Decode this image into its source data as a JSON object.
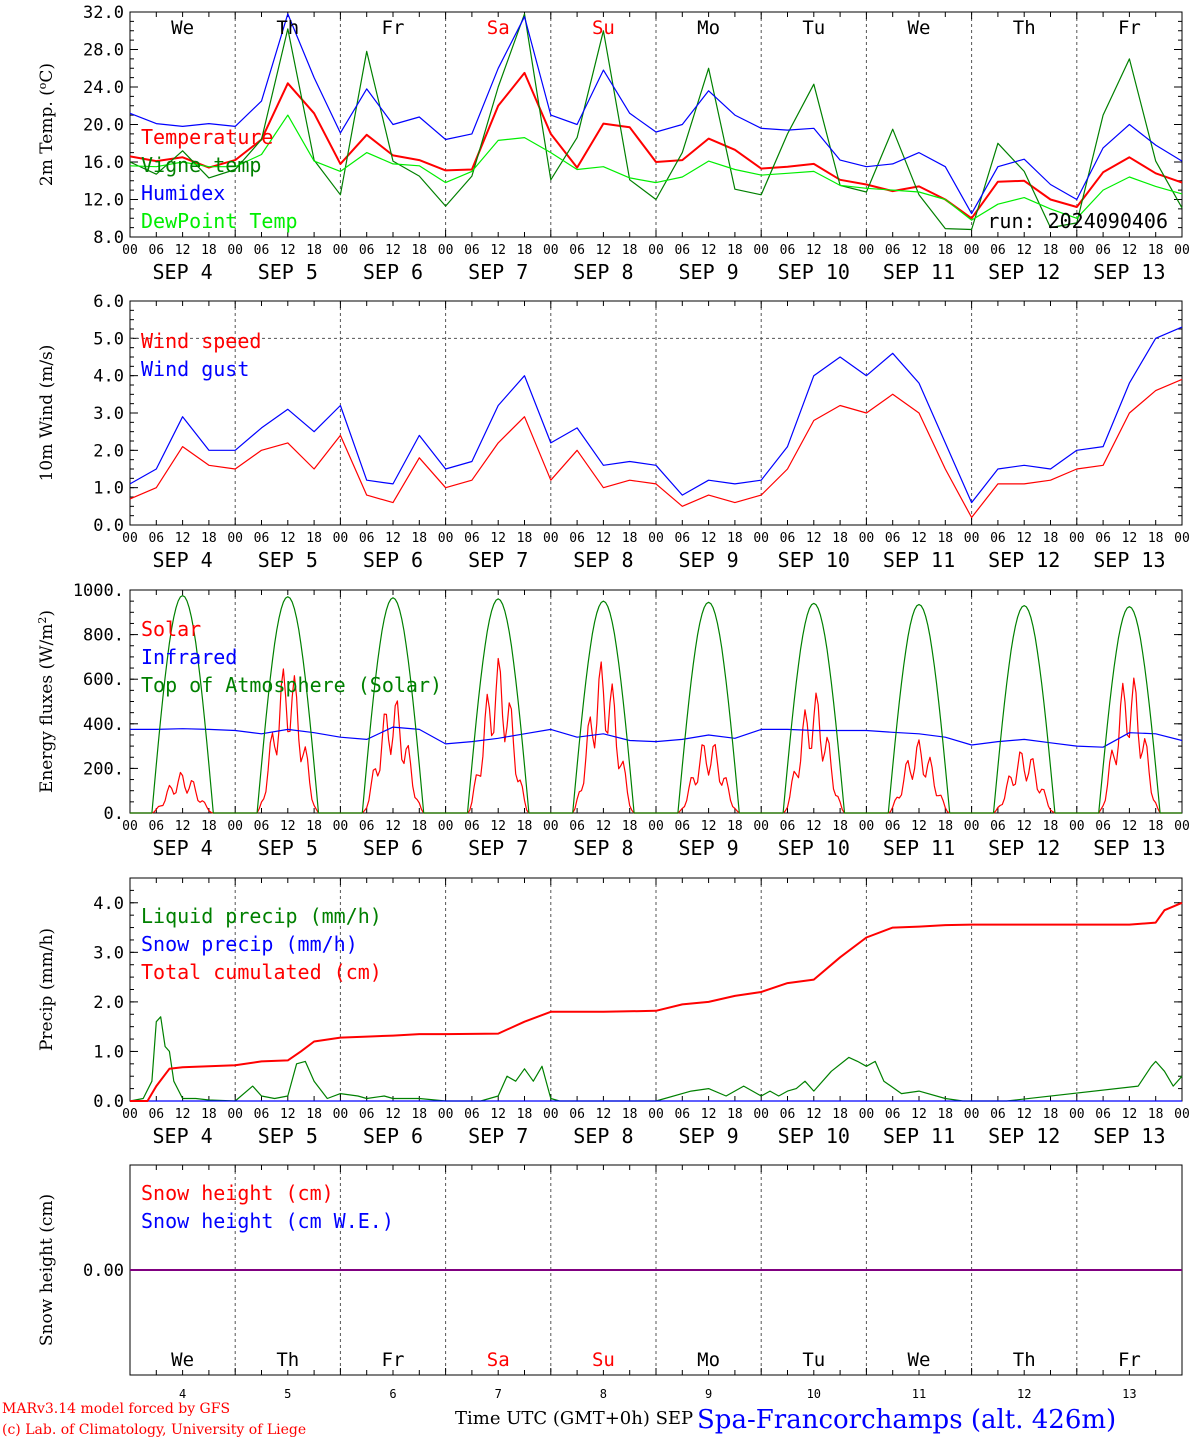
{
  "days": [
    "We",
    "Th",
    "Fr",
    "Sa",
    "Su",
    "Mo",
    "Tu",
    "We",
    "Th",
    "Fr"
  ],
  "weekend_days": [
    "Sa",
    "Su"
  ],
  "dates": [
    "SEP  4",
    "SEP  5",
    "SEP  6",
    "SEP  7",
    "SEP  8",
    "SEP  9",
    "SEP  10",
    "SEP  11",
    "SEP  12",
    "SEP  13"
  ],
  "bottom_dates": [
    "4",
    "5",
    "6",
    "7",
    "8",
    "9",
    "10",
    "11",
    "12",
    "13"
  ],
  "hour_ticks": [
    "00",
    "06",
    "12",
    "18"
  ],
  "run_label": "run: 2024090406",
  "footer": {
    "model": "MARv3.14 model forced by GFS",
    "credit": "(c) Lab. of Climatology, University of Liege",
    "xlabel": "Time UTC (GMT+0h) SEP",
    "station": "Spa-Francorchamps (alt. 426m)"
  },
  "colors": {
    "red": "#ff0000",
    "green": "#008000",
    "blue": "#0000ff",
    "lightgreen": "#00ee00",
    "purple": "#800080"
  },
  "chart_data": [
    {
      "id": "temp",
      "type": "line",
      "ylabel": "2m Temp. (oC)",
      "ylim": [
        8,
        32
      ],
      "ytick_values": [
        8,
        12,
        16,
        20,
        24,
        28,
        32
      ],
      "ytick_labels": [
        "8.0",
        "12.0",
        "16.0",
        "20.0",
        "24.0",
        "28.0",
        "32.0"
      ],
      "x_unit": "hours since SEP 4 00 UTC",
      "xlim": [
        0,
        240
      ],
      "legend_position": "left",
      "series": [
        {
          "name": "Temperature",
          "color": "#ff0000",
          "x": [
            0,
            6,
            12,
            18,
            24,
            30,
            36,
            42,
            48,
            54,
            60,
            66,
            72,
            78,
            84,
            90,
            96,
            102,
            108,
            114,
            120,
            126,
            132,
            138,
            144,
            150,
            156,
            162,
            168,
            174,
            180,
            186,
            192,
            198,
            204,
            210,
            216,
            222,
            228,
            234,
            240
          ],
          "y": [
            16.6,
            16.1,
            16.5,
            15.4,
            16.2,
            18.4,
            24.4,
            21.2,
            15.8,
            18.9,
            16.7,
            16.2,
            15.1,
            15.2,
            22.0,
            25.5,
            19.0,
            15.4,
            20.1,
            19.7,
            16.0,
            16.2,
            18.5,
            17.3,
            15.3,
            15.5,
            15.8,
            14.1,
            13.6,
            12.9,
            13.4,
            12.0,
            10.0,
            13.9,
            14.0,
            12.0,
            11.2,
            14.9,
            16.5,
            14.8,
            13.8
          ]
        },
        {
          "name": "Vigne temp",
          "color": "#008000",
          "x": [
            0,
            6,
            12,
            18,
            24,
            30,
            36,
            42,
            48,
            54,
            60,
            66,
            72,
            78,
            84,
            90,
            96,
            102,
            108,
            114,
            120,
            126,
            132,
            138,
            144,
            150,
            156,
            162,
            168,
            174,
            180,
            186,
            192,
            198,
            204,
            210,
            216,
            222,
            228,
            234,
            240
          ],
          "y": [
            16.0,
            14.7,
            17.2,
            14.3,
            15.2,
            18.4,
            30.2,
            16.2,
            12.5,
            27.8,
            16.1,
            14.5,
            11.3,
            14.5,
            24.0,
            31.8,
            14.1,
            18.6,
            30.0,
            14.1,
            12.0,
            17.0,
            26.0,
            13.1,
            12.5,
            19.0,
            24.3,
            13.5,
            12.8,
            19.5,
            12.5,
            8.9,
            8.8,
            18.0,
            15.0,
            9.0,
            9.5,
            21.0,
            27.0,
            16.1,
            11.1
          ]
        },
        {
          "name": "Humidex",
          "color": "#0000ff",
          "x": [
            0,
            6,
            12,
            18,
            24,
            30,
            36,
            42,
            48,
            54,
            60,
            66,
            72,
            78,
            84,
            90,
            96,
            102,
            108,
            114,
            120,
            126,
            132,
            138,
            144,
            150,
            156,
            162,
            168,
            174,
            180,
            186,
            192,
            198,
            204,
            210,
            216,
            222,
            228,
            234,
            240
          ],
          "y": [
            21.2,
            20.1,
            19.8,
            20.1,
            19.8,
            22.5,
            31.8,
            25.0,
            19.1,
            23.8,
            20.0,
            20.8,
            18.4,
            19.0,
            26.0,
            31.5,
            21.0,
            20.0,
            25.8,
            21.2,
            19.2,
            20.0,
            23.6,
            21.0,
            19.6,
            19.4,
            19.6,
            16.2,
            15.5,
            15.8,
            17.0,
            15.5,
            10.5,
            15.5,
            16.3,
            13.6,
            12.0,
            17.5,
            20.0,
            17.8,
            16.1
          ]
        },
        {
          "name": "DewPoint Temp",
          "color": "#00ee00",
          "x": [
            0,
            6,
            12,
            18,
            24,
            30,
            36,
            42,
            48,
            54,
            60,
            66,
            72,
            78,
            84,
            90,
            96,
            102,
            108,
            114,
            120,
            126,
            132,
            138,
            144,
            150,
            156,
            162,
            168,
            174,
            180,
            186,
            192,
            198,
            204,
            210,
            216,
            222,
            228,
            234,
            240
          ],
          "y": [
            15.6,
            15.5,
            16.0,
            15.5,
            15.5,
            16.8,
            21.0,
            16.1,
            15.0,
            17.0,
            15.8,
            15.6,
            13.8,
            15.0,
            18.3,
            18.6,
            17.0,
            15.2,
            15.5,
            14.3,
            13.8,
            14.4,
            16.1,
            15.2,
            14.6,
            14.8,
            15.0,
            13.5,
            13.2,
            13.0,
            12.8,
            12.0,
            9.8,
            11.5,
            12.2,
            11.0,
            10.0,
            13.0,
            14.4,
            13.4,
            12.6
          ]
        }
      ]
    },
    {
      "id": "wind",
      "type": "line",
      "ylabel": "10m Wind (m/s)",
      "ylim": [
        0,
        6
      ],
      "ytick_values": [
        0,
        1,
        2,
        3,
        4,
        5,
        6
      ],
      "ytick_labels": [
        "0.0",
        "1.0",
        "2.0",
        "3.0",
        "4.0",
        "5.0",
        "6.0"
      ],
      "reference_line": 5.0,
      "x_unit": "hours since SEP 4 00 UTC",
      "xlim": [
        0,
        240
      ],
      "legend_position": "left",
      "series": [
        {
          "name": "Wind speed",
          "color": "#ff0000",
          "x": [
            0,
            6,
            12,
            18,
            24,
            30,
            36,
            42,
            48,
            54,
            60,
            66,
            72,
            78,
            84,
            90,
            96,
            102,
            108,
            114,
            120,
            126,
            132,
            138,
            144,
            150,
            156,
            162,
            168,
            174,
            180,
            186,
            192,
            198,
            204,
            210,
            216,
            222,
            228,
            234,
            240
          ],
          "y": [
            0.7,
            1.0,
            2.1,
            1.6,
            1.5,
            2.0,
            2.2,
            1.5,
            2.4,
            0.8,
            0.6,
            1.8,
            1.0,
            1.2,
            2.2,
            2.9,
            1.2,
            2.0,
            1.0,
            1.2,
            1.1,
            0.5,
            0.8,
            0.6,
            0.8,
            1.5,
            2.8,
            3.2,
            3.0,
            3.5,
            3.0,
            1.5,
            0.2,
            1.1,
            1.1,
            1.2,
            1.5,
            1.6,
            3.0,
            3.6,
            3.9
          ]
        },
        {
          "name": "Wind gust",
          "color": "#0000ff",
          "x": [
            0,
            6,
            12,
            18,
            24,
            30,
            36,
            42,
            48,
            54,
            60,
            66,
            72,
            78,
            84,
            90,
            96,
            102,
            108,
            114,
            120,
            126,
            132,
            138,
            144,
            150,
            156,
            162,
            168,
            174,
            180,
            186,
            192,
            198,
            204,
            210,
            216,
            222,
            228,
            234,
            240
          ],
          "y": [
            1.1,
            1.5,
            2.9,
            2.0,
            2.0,
            2.6,
            3.1,
            2.5,
            3.2,
            1.2,
            1.1,
            2.4,
            1.5,
            1.7,
            3.2,
            4.0,
            2.2,
            2.6,
            1.6,
            1.7,
            1.6,
            0.8,
            1.2,
            1.1,
            1.2,
            2.1,
            4.0,
            4.5,
            4.0,
            4.6,
            3.8,
            2.2,
            0.6,
            1.5,
            1.6,
            1.5,
            2.0,
            2.1,
            3.8,
            5.0,
            5.3
          ]
        }
      ]
    },
    {
      "id": "energy",
      "type": "line",
      "ylabel": "Energy fluxes (W/m2)",
      "ylim": [
        0,
        1000
      ],
      "ytick_values": [
        0,
        200,
        400,
        600,
        800,
        1000
      ],
      "ytick_labels": [
        "0.",
        "200.",
        "400.",
        "600.",
        "800.",
        "1000."
      ],
      "x_unit": "hours since SEP 4 00 UTC",
      "xlim": [
        0,
        240
      ],
      "legend_position": "left",
      "daily_solar_peaks": [
        185,
        680,
        530,
        700,
        690,
        340,
        550,
        330,
        290,
        640
      ],
      "daily_toa_peaks": [
        975,
        970,
        965,
        960,
        950,
        945,
        940,
        935,
        930,
        925
      ],
      "series": [
        {
          "name": "Solar",
          "color": "#ff0000"
        },
        {
          "name": "Infrared",
          "color": "#0000ff",
          "x": [
            0,
            6,
            12,
            18,
            24,
            30,
            36,
            42,
            48,
            54,
            60,
            66,
            72,
            78,
            84,
            90,
            96,
            102,
            108,
            114,
            120,
            126,
            132,
            138,
            144,
            150,
            156,
            162,
            168,
            174,
            180,
            186,
            192,
            198,
            204,
            210,
            216,
            222,
            228,
            234,
            240
          ],
          "y": [
            375,
            375,
            378,
            375,
            370,
            355,
            375,
            360,
            340,
            330,
            385,
            375,
            310,
            320,
            335,
            355,
            375,
            340,
            355,
            325,
            320,
            330,
            350,
            335,
            375,
            375,
            370,
            370,
            370,
            362,
            355,
            340,
            305,
            320,
            330,
            315,
            300,
            295,
            360,
            355,
            325
          ]
        },
        {
          "name": "Top of Atmosphere (Solar)",
          "color": "#008000"
        }
      ]
    },
    {
      "id": "precip",
      "type": "line",
      "ylabel": "Precip (mm/h)",
      "ylim": [
        0,
        4.5
      ],
      "ytick_values": [
        0,
        1,
        2,
        3,
        4
      ],
      "ytick_labels": [
        "0.0",
        "1.0",
        "2.0",
        "3.0",
        "4.0"
      ],
      "x_unit": "hours since SEP 4 00 UTC",
      "xlim": [
        0,
        240
      ],
      "legend_position": "left",
      "series": [
        {
          "name": "Liquid precip (mm/h)",
          "color": "#008000",
          "x": [
            0,
            3,
            5,
            6,
            7,
            8,
            9,
            10,
            12,
            15,
            18,
            24,
            28,
            30,
            33,
            36,
            38,
            40,
            42,
            45,
            48,
            52,
            54,
            58,
            60,
            66,
            72,
            80,
            84,
            86,
            88,
            90,
            92,
            94,
            96,
            98,
            100,
            120,
            128,
            132,
            136,
            140,
            144,
            146,
            148,
            150,
            152,
            154,
            156,
            160,
            164,
            166,
            168,
            170,
            172,
            176,
            180,
            186,
            190,
            200,
            230,
            233,
            234,
            236,
            238,
            240
          ],
          "y": [
            0,
            0.05,
            0.4,
            1.6,
            1.7,
            1.1,
            1.0,
            0.4,
            0.05,
            0.05,
            0.02,
            0,
            0.3,
            0.1,
            0.05,
            0.1,
            0.75,
            0.8,
            0.4,
            0.05,
            0.15,
            0.1,
            0.05,
            0.1,
            0.05,
            0.05,
            0,
            0,
            0.1,
            0.5,
            0.4,
            0.65,
            0.4,
            0.7,
            0.05,
            0,
            0,
            0,
            0.2,
            0.25,
            0.1,
            0.3,
            0.1,
            0.2,
            0.1,
            0.2,
            0.25,
            0.4,
            0.2,
            0.6,
            0.88,
            0.8,
            0.7,
            0.8,
            0.4,
            0.15,
            0.2,
            0.05,
            0,
            0,
            0.3,
            0.7,
            0.8,
            0.6,
            0.3,
            0.5
          ]
        },
        {
          "name": "Snow precip (mm/h)",
          "color": "#0000ff",
          "x": [
            0,
            240
          ],
          "y": [
            0,
            0
          ]
        },
        {
          "name": "Total cumulated (cm)",
          "color": "#ff0000",
          "x": [
            0,
            4,
            6,
            9,
            12,
            24,
            30,
            36,
            39,
            42,
            48,
            54,
            60,
            66,
            72,
            84,
            90,
            96,
            100,
            108,
            120,
            126,
            132,
            138,
            144,
            150,
            156,
            162,
            168,
            174,
            180,
            186,
            192,
            200,
            220,
            228,
            234,
            236,
            240
          ],
          "y": [
            0,
            0,
            0.3,
            0.65,
            0.68,
            0.72,
            0.8,
            0.82,
            1.0,
            1.2,
            1.28,
            1.3,
            1.32,
            1.35,
            1.35,
            1.36,
            1.6,
            1.8,
            1.8,
            1.8,
            1.82,
            1.95,
            2.0,
            2.12,
            2.2,
            2.38,
            2.45,
            2.9,
            3.3,
            3.5,
            3.52,
            3.55,
            3.56,
            3.56,
            3.56,
            3.56,
            3.6,
            3.85,
            4.0
          ]
        }
      ]
    },
    {
      "id": "snow",
      "type": "line",
      "ylabel": "Snow height (cm)",
      "ylim": [
        -1,
        1
      ],
      "ytick_values": [
        0
      ],
      "ytick_labels": [
        "0.00"
      ],
      "x_unit": "hours since SEP 4 00 UTC",
      "xlim": [
        0,
        240
      ],
      "legend_position": "left",
      "series": [
        {
          "name": "Snow height (cm)",
          "color": "#ff0000",
          "x": [
            0,
            240
          ],
          "y": [
            0,
            0
          ]
        },
        {
          "name": "Snow height (cm W.E.)",
          "color": "#0000ff",
          "x": [
            0,
            240
          ],
          "y": [
            0,
            0
          ]
        }
      ]
    }
  ]
}
